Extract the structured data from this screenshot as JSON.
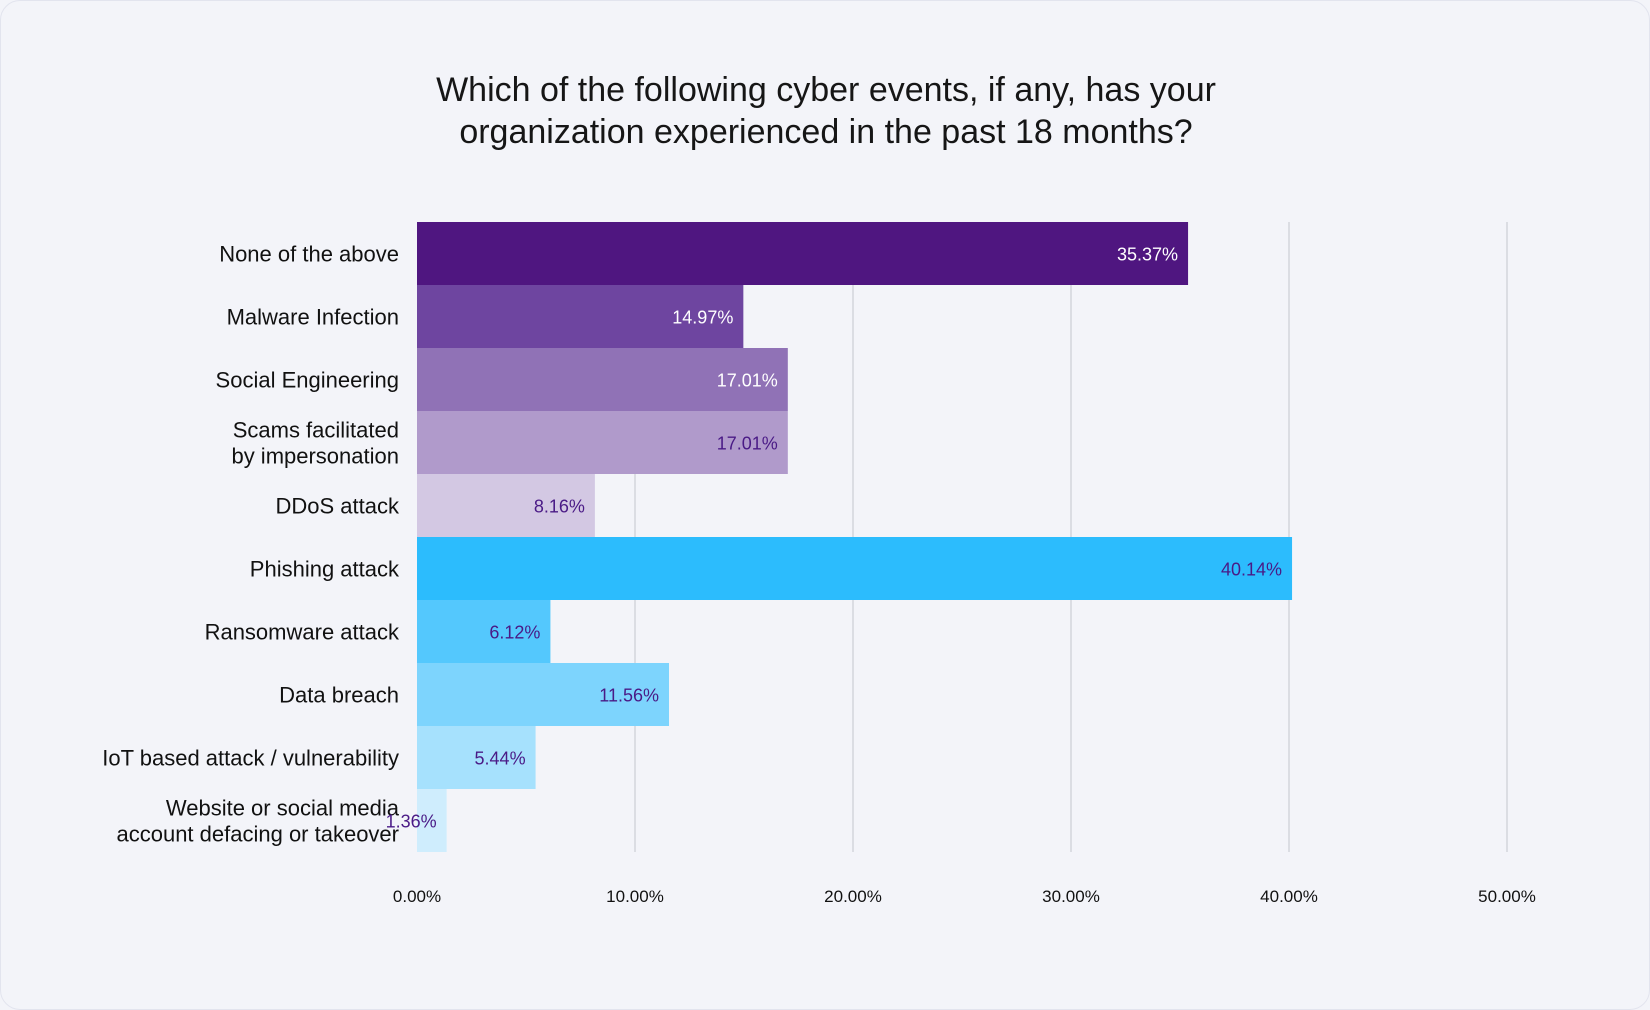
{
  "chart_data": {
    "type": "bar",
    "orientation": "horizontal",
    "title_lines": [
      "Which of the following cyber events, if any, has your",
      "organization experienced in the past 18 months?"
    ],
    "categories": [
      [
        "None of the above"
      ],
      [
        "Malware Infection"
      ],
      [
        "Social Engineering"
      ],
      [
        "Scams facilitated",
        "by impersonation"
      ],
      [
        "DDoS attack"
      ],
      [
        "Phishing attack"
      ],
      [
        "Ransomware attack"
      ],
      [
        "Data breach"
      ],
      [
        "IoT based attack / vulnerability"
      ],
      [
        "Website or social media",
        "account defacing or takeover"
      ]
    ],
    "values": [
      35.37,
      14.97,
      17.01,
      17.01,
      8.16,
      40.14,
      6.12,
      11.56,
      5.44,
      1.36
    ],
    "value_labels": [
      "35.37%",
      "14.97%",
      "17.01%",
      "17.01%",
      "8.16%",
      "40.14%",
      "6.12%",
      "11.56%",
      "5.44%",
      "1.36%"
    ],
    "bar_colors": [
      "#4f1680",
      "#6e45a0",
      "#9072b6",
      "#b09acb",
      "#d3c8e3",
      "#2cbcfd",
      "#54c8fd",
      "#7dd4fd",
      "#a6e1fd",
      "#cfedfd"
    ],
    "label_colors": [
      "#ffffff",
      "#ffffff",
      "#ffffff",
      "#4a1a86",
      "#4a1a86",
      "#4a1a86",
      "#4a1a86",
      "#4a1a86",
      "#4a1a86",
      "#4a1a86"
    ],
    "xlim": [
      0,
      50
    ],
    "x_ticks": [
      0,
      10,
      20,
      30,
      40,
      50
    ],
    "x_tick_labels": [
      "0.00%",
      "10.00%",
      "20.00%",
      "30.00%",
      "40.00%",
      "50.00%"
    ],
    "grid": true,
    "legend": "none"
  }
}
